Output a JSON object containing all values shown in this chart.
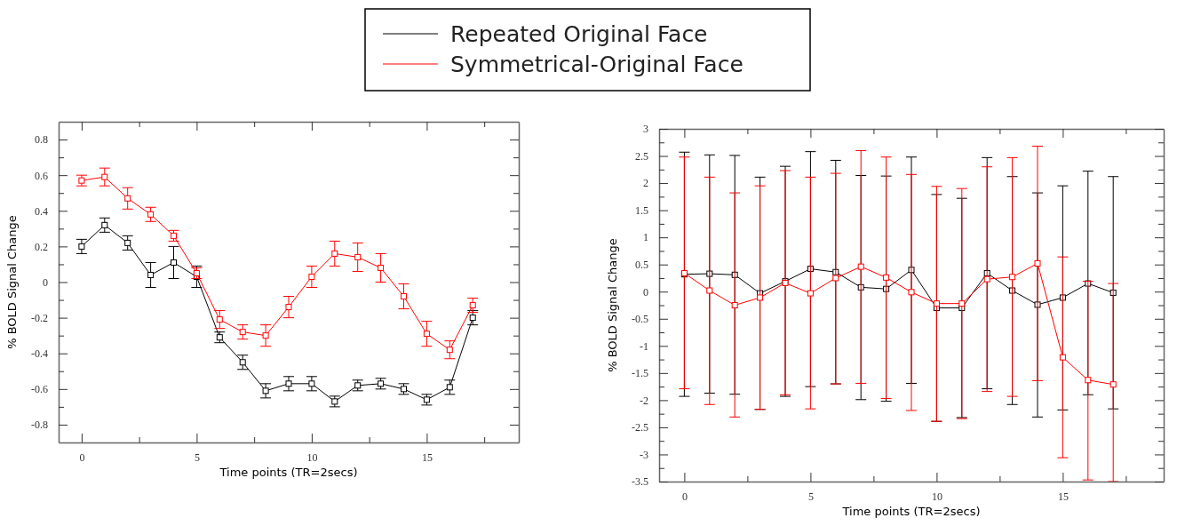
{
  "chart_data": [
    {
      "type": "line",
      "xlabel": "Time points (TR=2secs)",
      "ylabel": "% BOLD Signal Change",
      "x": [
        0,
        1,
        2,
        3,
        4,
        5,
        6,
        7,
        8,
        9,
        10,
        11,
        12,
        13,
        14,
        15,
        16,
        17
      ],
      "xlim": [
        -1,
        19
      ],
      "xticks": [
        0,
        {
          "value": 2.5,
          "label": null
        },
        5,
        {
          "value": 7.5,
          "label": null
        },
        10,
        {
          "value": 12.5,
          "label": null
        },
        15,
        {
          "value": 17.5,
          "label": null
        }
      ],
      "ylim": [
        -0.9,
        0.9
      ],
      "yticks": [
        -0.8,
        {
          "value": -0.7,
          "label": null
        },
        -0.6,
        {
          "value": -0.5,
          "label": null
        },
        -0.4,
        {
          "value": -0.3,
          "label": null
        },
        -0.2,
        {
          "value": -0.1,
          "label": null
        },
        0,
        {
          "value": 0.1,
          "label": null
        },
        0.2,
        {
          "value": 0.3,
          "label": null
        },
        0.4,
        {
          "value": 0.5,
          "label": null
        },
        0.6,
        {
          "value": 0.7,
          "label": null
        },
        0.8
      ],
      "marker": "square",
      "legend": "top",
      "grid": false,
      "series": [
        {
          "name": "Repeated Original Face",
          "color": "#000000",
          "values": [
            0.2,
            0.32,
            0.22,
            0.04,
            0.11,
            0.03,
            -0.31,
            -0.45,
            -0.61,
            -0.57,
            -0.57,
            -0.67,
            -0.58,
            -0.57,
            -0.6,
            -0.66,
            -0.59,
            -0.2
          ],
          "errors": [
            0.04,
            0.04,
            0.04,
            0.07,
            0.09,
            0.06,
            0.03,
            0.04,
            0.04,
            0.04,
            0.04,
            0.03,
            0.03,
            0.03,
            0.03,
            0.03,
            0.04,
            0.04
          ]
        },
        {
          "name": "Symmetrical-Original Face",
          "color": "#ff0000",
          "values": [
            0.57,
            0.59,
            0.47,
            0.38,
            0.26,
            0.05,
            -0.21,
            -0.28,
            -0.3,
            -0.14,
            0.03,
            0.16,
            0.14,
            0.08,
            -0.08,
            -0.29,
            -0.38,
            -0.13
          ],
          "errors": [
            0.03,
            0.05,
            0.06,
            0.04,
            0.03,
            0.03,
            0.05,
            0.04,
            0.06,
            0.06,
            0.06,
            0.07,
            0.08,
            0.08,
            0.07,
            0.07,
            0.05,
            0.04
          ]
        }
      ]
    },
    {
      "type": "line",
      "xlabel": "Time points (TR=2secs)",
      "ylabel": "% BOLD Signal Change",
      "x": [
        0,
        1,
        2,
        3,
        4,
        5,
        6,
        7,
        8,
        9,
        10,
        11,
        12,
        13,
        14,
        15,
        16,
        17
      ],
      "xlim": [
        -1,
        19
      ],
      "xticks": [
        0,
        {
          "value": 2.5,
          "label": null
        },
        5,
        {
          "value": 7.5,
          "label": null
        },
        10,
        {
          "value": 12.5,
          "label": null
        },
        15,
        {
          "value": 17.5,
          "label": null
        }
      ],
      "ylim": [
        -3.5,
        3
      ],
      "yticks": [
        -3.5,
        {
          "value": -3.25,
          "label": null
        },
        -3,
        {
          "value": -2.75,
          "label": null
        },
        -2.5,
        {
          "value": -2.25,
          "label": null
        },
        -2,
        {
          "value": -1.75,
          "label": null
        },
        -1.5,
        {
          "value": -1.25,
          "label": null
        },
        -1,
        {
          "value": -0.75,
          "label": null
        },
        -0.5,
        {
          "value": -0.25,
          "label": null
        },
        0,
        {
          "value": 0.25,
          "label": null
        },
        0.5,
        {
          "value": 0.75,
          "label": null
        },
        1,
        {
          "value": 1.25,
          "label": null
        },
        1.5,
        {
          "value": 1.75,
          "label": null
        },
        2,
        {
          "value": 2.25,
          "label": null
        },
        2.5,
        {
          "value": 2.75,
          "label": null
        },
        3
      ],
      "marker": "square",
      "grid": false,
      "series": [
        {
          "color": "#000000",
          "values": [
            0.32,
            0.33,
            0.31,
            -0.03,
            0.19,
            0.42,
            0.36,
            0.08,
            0.05,
            0.4,
            -0.3,
            -0.3,
            0.34,
            0.02,
            -0.24,
            -0.11,
            0.15,
            -0.02
          ],
          "errors": [
            [
              -1.93,
              2.57
            ],
            [
              -1.87,
              2.52
            ],
            [
              -1.89,
              2.51
            ],
            [
              -2.17,
              2.11
            ],
            [
              -1.93,
              2.31
            ],
            [
              -1.75,
              2.58
            ],
            [
              -1.7,
              2.42
            ],
            [
              -1.99,
              2.14
            ],
            [
              -2.02,
              2.13
            ],
            [
              -1.69,
              2.48
            ],
            [
              -2.39,
              1.79
            ],
            [
              -2.32,
              1.72
            ],
            [
              -1.79,
              2.47
            ],
            [
              -2.08,
              2.12
            ],
            [
              -2.31,
              1.82
            ],
            [
              -2.18,
              1.95
            ],
            [
              -1.9,
              2.22
            ],
            [
              -2.16,
              2.12
            ]
          ]
        },
        {
          "color": "#ff0000",
          "values": [
            0.34,
            0.02,
            -0.25,
            -0.11,
            0.16,
            -0.03,
            0.25,
            0.46,
            0.26,
            -0.01,
            -0.22,
            -0.22,
            0.23,
            0.27,
            0.52,
            -1.21,
            -1.63,
            -1.71
          ],
          "errors": [
            [
              -1.79,
              2.48
            ],
            [
              -2.08,
              2.11
            ],
            [
              -2.31,
              1.82
            ],
            [
              -2.17,
              1.95
            ],
            [
              -1.9,
              2.23
            ],
            [
              -2.16,
              2.11
            ],
            [
              -1.7,
              2.18
            ],
            [
              -1.69,
              2.6
            ],
            [
              -1.97,
              2.48
            ],
            [
              -2.19,
              2.16
            ],
            [
              -2.39,
              1.94
            ],
            [
              -2.34,
              1.9
            ],
            [
              -1.84,
              2.3
            ],
            [
              -1.93,
              2.47
            ],
            [
              -1.64,
              2.68
            ],
            [
              -3.06,
              0.64
            ],
            [
              -3.47,
              0.19
            ],
            [
              -3.5,
              0.15
            ]
          ]
        }
      ]
    }
  ]
}
